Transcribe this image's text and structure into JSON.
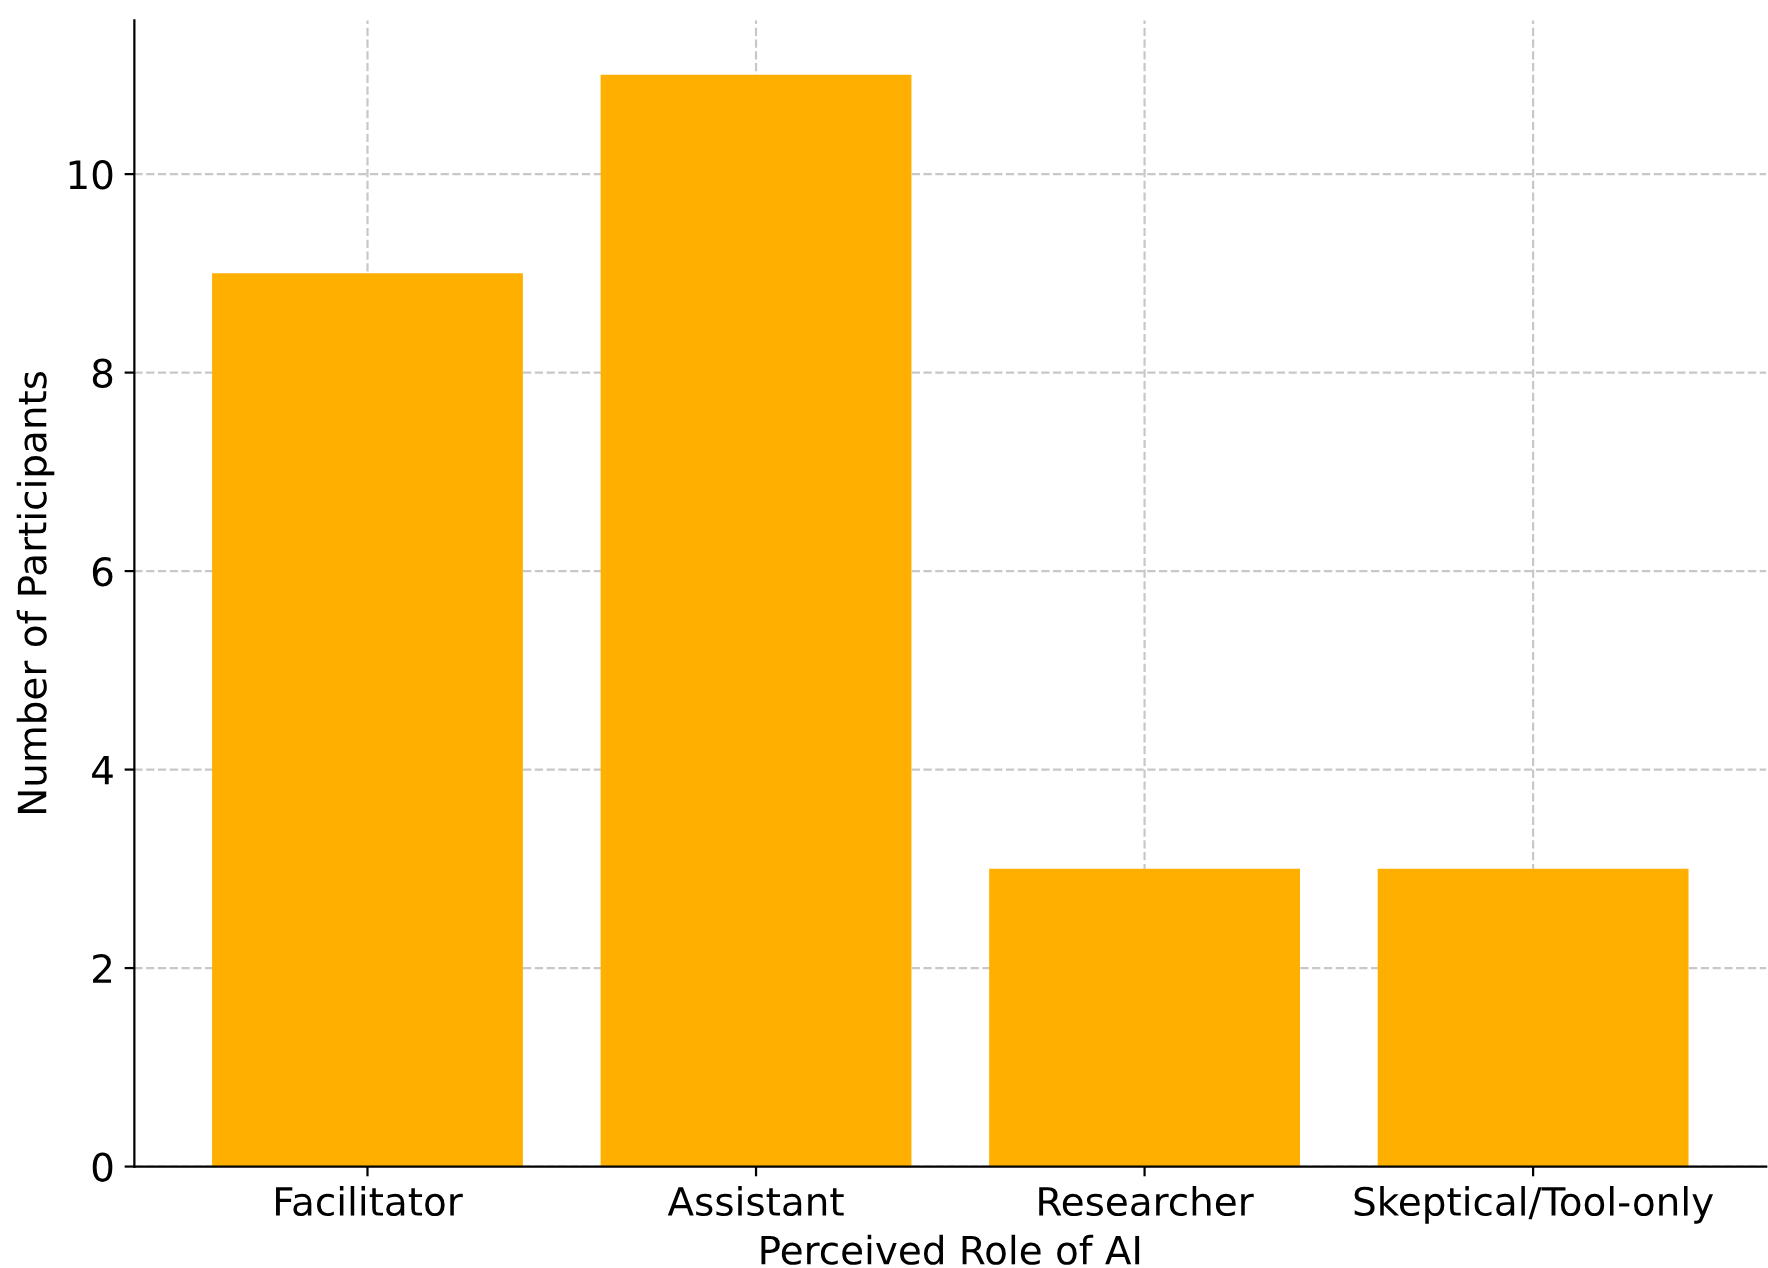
{
  "chart_data": {
    "type": "bar",
    "xlabel": "Perceived Role of AI",
    "ylabel": "Number of Participants",
    "categories": [
      "Facilitator",
      "Assistant",
      "Researcher",
      "Skeptical/Tool-only"
    ],
    "values": [
      9,
      11,
      3,
      3
    ],
    "color": "#ffaf00",
    "ylim": [
      0,
      11.55
    ],
    "yticks": [
      0,
      2,
      4,
      6,
      8,
      10
    ],
    "grid": true,
    "legend": false
  }
}
